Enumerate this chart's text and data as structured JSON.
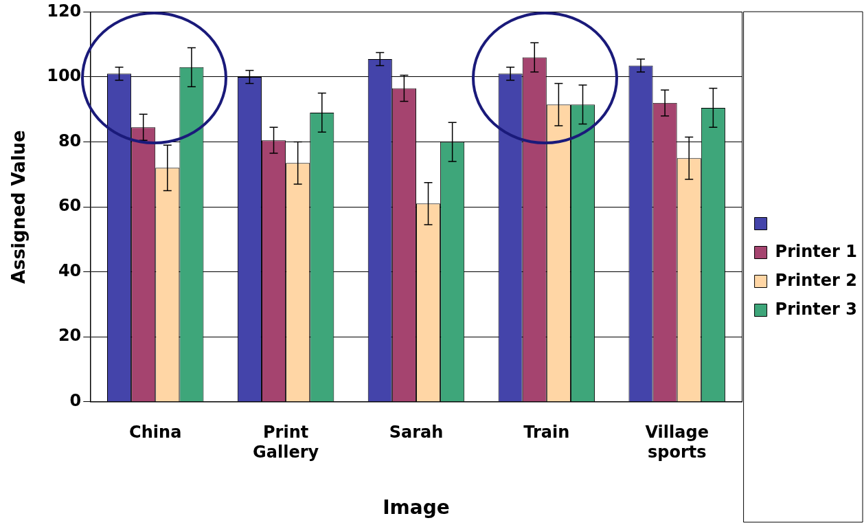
{
  "chart_data": {
    "type": "bar",
    "xlabel": "Image",
    "ylabel": "Assigned Value",
    "categories": [
      "China",
      "Print Gallery",
      "Sarah",
      "Train",
      "Village sports"
    ],
    "series": [
      {
        "color": "#4444aa",
        "values": [
          101,
          100,
          105.5,
          101,
          103.5
        ],
        "errors": [
          2,
          2,
          2,
          2,
          2
        ]
      },
      {
        "name": "Printer 1",
        "color": "#a5446f",
        "values": [
          84.5,
          80.5,
          96.5,
          106,
          92
        ],
        "errors": [
          4,
          4,
          4,
          4.5,
          4
        ]
      },
      {
        "name": "Printer 2",
        "color": "#ffd6a5",
        "values": [
          72,
          73.5,
          61,
          91.5,
          75
        ],
        "errors": [
          7,
          6.5,
          6.5,
          6.5,
          6.5
        ]
      },
      {
        "name": "Printer 3",
        "color": "#3ea67a",
        "values": [
          103,
          89,
          80,
          91.5,
          90.5
        ],
        "errors": [
          6,
          6,
          6,
          6,
          6
        ]
      }
    ],
    "ylim": [
      0,
      120
    ],
    "yticks": [
      0,
      20,
      40,
      60,
      80,
      100,
      120
    ],
    "grid": "y",
    "legend": "right"
  }
}
